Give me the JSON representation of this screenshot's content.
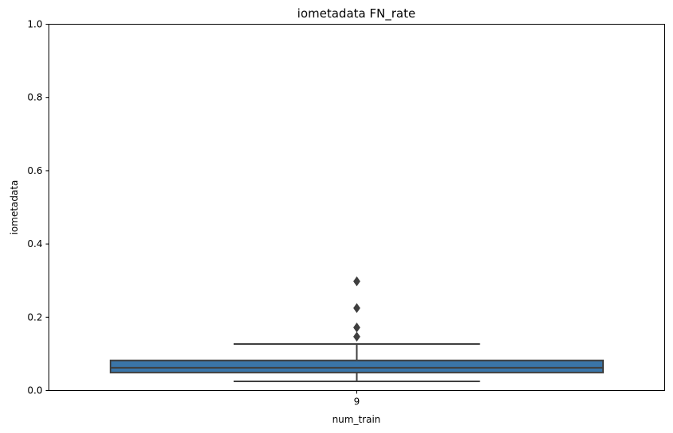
{
  "chart_data": {
    "type": "box",
    "title": "iometadata FN_rate",
    "xlabel": "num_train",
    "ylabel": "iometadata",
    "categories": [
      "9"
    ],
    "ylim": [
      0,
      1
    ],
    "yticks": [
      "0.0",
      "0.2",
      "0.4",
      "0.6",
      "0.8",
      "1.0"
    ],
    "grid": false,
    "boxes": [
      {
        "category": "9",
        "whisker_low": 0.025,
        "q1": 0.049,
        "median": 0.062,
        "q3": 0.082,
        "whisker_high": 0.127,
        "outliers": [
          0.147,
          0.172,
          0.225,
          0.298
        ]
      }
    ],
    "colors": {
      "box": "#3a75a8",
      "lines": "#3f3f3f",
      "axes": "#000000"
    }
  }
}
